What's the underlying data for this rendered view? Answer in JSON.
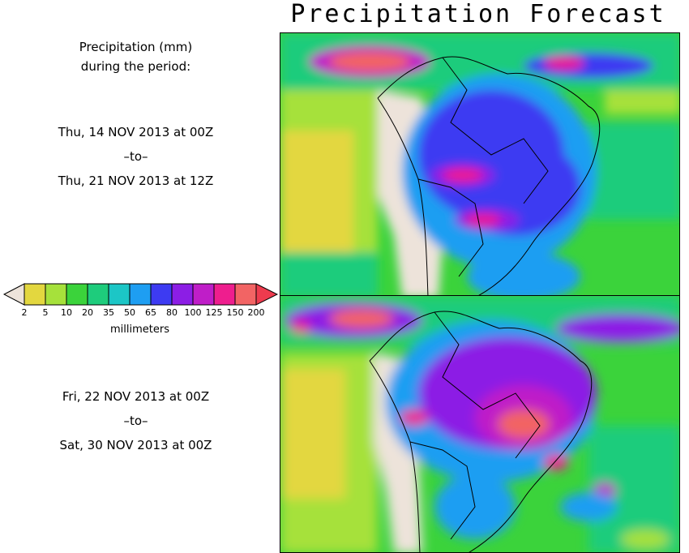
{
  "title": "Precipitation Forecast",
  "header": {
    "line1": "Precipitation (mm)",
    "line2": "during the period:"
  },
  "period1": {
    "start": "Thu, 14 NOV 2013 at 00Z",
    "sep": "–to–",
    "end": "Thu, 21 NOV 2013 at 12Z"
  },
  "period2": {
    "start": "Fri, 22 NOV 2013 at 00Z",
    "sep": "–to–",
    "end": "Sat, 30 NOV 2013 at 00Z"
  },
  "colorbar": {
    "unit": "millimeters",
    "ticks": [
      "2",
      "5",
      "10",
      "20",
      "35",
      "50",
      "65",
      "80",
      "100",
      "125",
      "150",
      "200"
    ],
    "under_color": "#ede3da",
    "over_color": "#ee3b4e",
    "colors": [
      "#e3d73f",
      "#a6e13b",
      "#3bd33b",
      "#1ecc7c",
      "#1cc6c6",
      "#1e9ef2",
      "#3d3bf2",
      "#8c1ee5",
      "#bf1ec8",
      "#ee1e8e",
      "#f26464"
    ]
  }
}
